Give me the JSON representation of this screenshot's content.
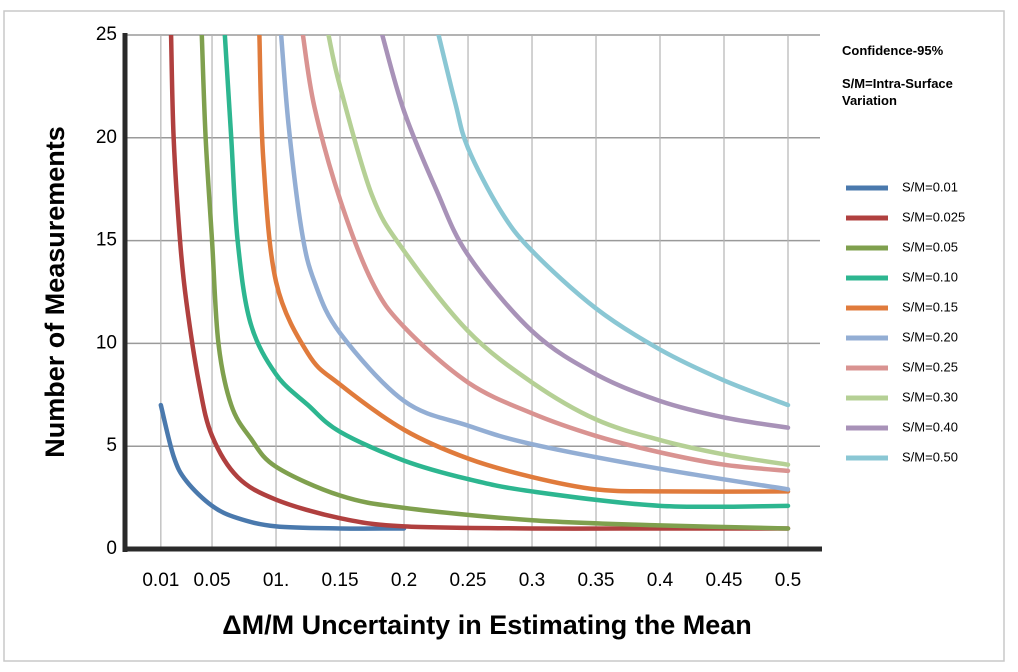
{
  "chart_data": {
    "type": "line",
    "xlabel": "ΔM/M Uncertainty in Estimating the Mean",
    "ylabel": "Number of Measurements",
    "notes": [
      "Confidence-95%",
      "S/M=Intra-Surface Variation"
    ],
    "xlim": [
      -0.018,
      0.525
    ],
    "xticks": [
      0.01,
      0.05,
      {
        "value": 0.1,
        "label": "01."
      },
      0.15,
      0.2,
      0.25,
      0.3,
      0.35,
      0.4,
      0.45,
      0.5
    ],
    "ylim": [
      0,
      25
    ],
    "yticks": [
      0,
      5,
      10,
      15,
      20,
      25
    ],
    "grid": true,
    "series": [
      {
        "name": "S/M=0.01",
        "color": "#4a79ad",
        "x": [
          0.01,
          0.02,
          0.03,
          0.05,
          0.07,
          0.1,
          0.15,
          0.2
        ],
        "values": [
          7,
          4.5,
          3.3,
          2.1,
          1.5,
          1.1,
          1,
          1
        ]
      },
      {
        "name": "S/M=0.025",
        "color": "#b0403f",
        "x": [
          0.018,
          0.02,
          0.025,
          0.03,
          0.04,
          0.05,
          0.07,
          0.1,
          0.15,
          0.2,
          0.3,
          0.4,
          0.5
        ],
        "values": [
          25,
          20,
          15,
          12,
          8,
          5.5,
          3.5,
          2.4,
          1.5,
          1.1,
          1,
          1,
          1
        ]
      },
      {
        "name": "S/M=0.05",
        "color": "#7fa04e",
        "x": [
          0.042,
          0.045,
          0.05,
          0.055,
          0.065,
          0.08,
          0.1,
          0.15,
          0.2,
          0.3,
          0.4,
          0.5
        ],
        "values": [
          25,
          20,
          15,
          10,
          7,
          5.4,
          4,
          2.6,
          2,
          1.4,
          1.15,
          1
        ]
      },
      {
        "name": "S/M=0.10",
        "color": "#2db690",
        "x": [
          0.06,
          0.065,
          0.07,
          0.08,
          0.1,
          0.125,
          0.15,
          0.2,
          0.25,
          0.3,
          0.4,
          0.5
        ],
        "values": [
          25,
          20,
          15,
          11,
          8.5,
          7,
          5.7,
          4.3,
          3.4,
          2.8,
          2.1,
          2.1
        ]
      },
      {
        "name": "S/M=0.15",
        "color": "#e07b3c",
        "x": [
          0.087,
          0.09,
          0.1,
          0.125,
          0.15,
          0.2,
          0.25,
          0.3,
          0.35,
          0.4,
          0.5
        ],
        "values": [
          25,
          19,
          13,
          9.5,
          8,
          5.8,
          4.4,
          3.5,
          2.9,
          2.8,
          2.8
        ]
      },
      {
        "name": "S/M=0.20",
        "color": "#93aed4",
        "x": [
          0.104,
          0.11,
          0.12,
          0.13,
          0.15,
          0.2,
          0.25,
          0.3,
          0.4,
          0.5
        ],
        "values": [
          25,
          20.5,
          15.5,
          13,
          10.5,
          7.2,
          6,
          5.1,
          3.9,
          2.9
        ]
      },
      {
        "name": "S/M=0.25",
        "color": "#d99391",
        "x": [
          0.121,
          0.13,
          0.15,
          0.175,
          0.2,
          0.25,
          0.3,
          0.35,
          0.4,
          0.45,
          0.5
        ],
        "values": [
          25,
          21.5,
          17,
          13,
          10.8,
          8.1,
          6.6,
          5.5,
          4.7,
          4.1,
          3.8
        ]
      },
      {
        "name": "S/M=0.30",
        "color": "#b5d095",
        "x": [
          0.141,
          0.15,
          0.175,
          0.2,
          0.25,
          0.3,
          0.35,
          0.4,
          0.45,
          0.5
        ],
        "values": [
          25,
          22.5,
          17.2,
          14.5,
          10.6,
          8.1,
          6.3,
          5.3,
          4.6,
          4.1
        ]
      },
      {
        "name": "S/M=0.40",
        "color": "#a892b8",
        "x": [
          0.183,
          0.2,
          0.225,
          0.25,
          0.3,
          0.35,
          0.4,
          0.45,
          0.5
        ],
        "values": [
          25,
          21.3,
          17.5,
          14.3,
          10.6,
          8.5,
          7.2,
          6.4,
          5.9
        ]
      },
      {
        "name": "S/M=0.50",
        "color": "#8ac7d4",
        "x": [
          0.227,
          0.24,
          0.25,
          0.275,
          0.3,
          0.35,
          0.4,
          0.45,
          0.5
        ],
        "values": [
          25,
          21.7,
          19.5,
          16.5,
          14.5,
          11.7,
          9.7,
          8.2,
          7
        ]
      }
    ]
  }
}
